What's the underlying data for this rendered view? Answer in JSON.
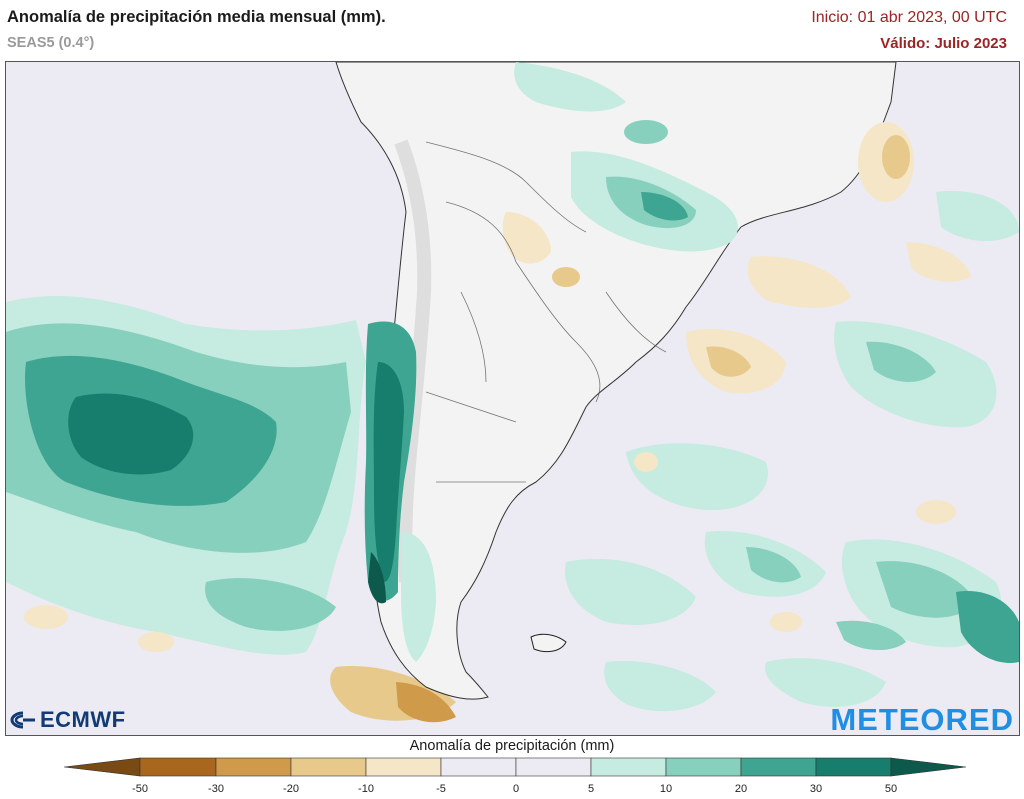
{
  "header": {
    "title": "Anomalía de precipitación media mensual (mm).",
    "model": "SEAS5 (0.4°)",
    "init": "Inicio: 01 abr 2023, 00 UTC",
    "valid": "Válido: Julio 2023"
  },
  "logos": {
    "left": "ECMWF",
    "right": "METEORED"
  },
  "legend": {
    "title": "Anomalía de precipitación (mm)",
    "ticks": [
      "-50",
      "-30",
      "-20",
      "-10",
      "-5",
      "0",
      "5",
      "10",
      "20",
      "30",
      "50"
    ],
    "colors": [
      "#7a4a14",
      "#a8671d",
      "#cf9a4a",
      "#e7c98b",
      "#f4e6c6",
      "#ecebf3",
      "#ecebf3",
      "#c6ebe1",
      "#86d0bd",
      "#3da591",
      "#177d6c",
      "#0d5a4c"
    ]
  },
  "map": {
    "region": "South America (southern cone) and surrounding oceans",
    "colors": {
      "ocean": "#ecebf3",
      "land": "#f3f3f3",
      "wet_light": "#c6ebe1",
      "wet_medium": "#86d0bd",
      "wet_strong": "#3da591",
      "wet_max": "#177d6c",
      "dry_light": "#f4e6c6",
      "dry_medium": "#e7c98b"
    }
  }
}
